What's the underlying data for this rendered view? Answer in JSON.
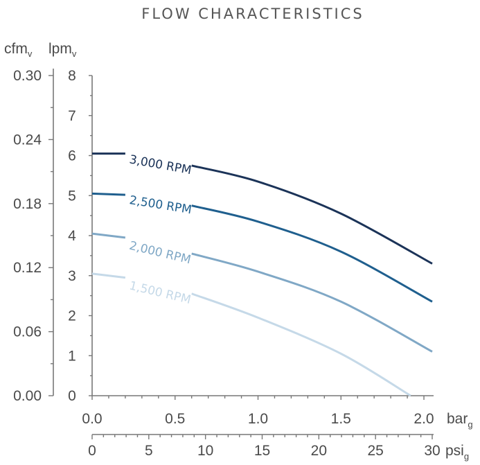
{
  "chart_data": {
    "type": "line",
    "title": "FLOW CHARACTERISTICS",
    "x_axes": {
      "bar": {
        "label_main": "bar",
        "label_sub": "g",
        "range": [
          0,
          2.05
        ],
        "ticks": [
          "0.0",
          "0.5",
          "1.0",
          "1.5",
          "2.0"
        ]
      },
      "psi": {
        "label_main": "psi",
        "label_sub": "g",
        "range": [
          0,
          30
        ],
        "ticks": [
          "0",
          "5",
          "10",
          "15",
          "20",
          "25",
          "30"
        ]
      }
    },
    "y_axes": {
      "cfm": {
        "label_main": "cfm",
        "label_sub": "v",
        "range": [
          0,
          0.3
        ],
        "ticks": [
          "0.00",
          "0.06",
          "0.12",
          "0.18",
          "0.24",
          "0.30"
        ]
      },
      "lpm": {
        "label_main": "lpm",
        "label_sub": "v",
        "range": [
          0,
          8
        ],
        "ticks": [
          "0",
          "1",
          "2",
          "3",
          "4",
          "5",
          "6",
          "7",
          "8"
        ]
      }
    },
    "series": [
      {
        "name": "3,000 RPM",
        "color": "#1b3358",
        "points": [
          [
            0,
            6.05
          ],
          [
            0.2,
            6.05
          ],
          [
            0.6,
            5.75
          ],
          [
            1.0,
            5.35
          ],
          [
            1.5,
            4.55
          ],
          [
            2.05,
            3.3
          ]
        ]
      },
      {
        "name": "2,500 RPM",
        "color": "#1f5f8e",
        "points": [
          [
            0,
            5.05
          ],
          [
            0.2,
            5.02
          ],
          [
            0.6,
            4.75
          ],
          [
            1.0,
            4.35
          ],
          [
            1.5,
            3.6
          ],
          [
            2.05,
            2.35
          ]
        ]
      },
      {
        "name": "2,000 RPM",
        "color": "#80a8c6",
        "points": [
          [
            0,
            4.05
          ],
          [
            0.2,
            3.95
          ],
          [
            0.6,
            3.55
          ],
          [
            1.0,
            3.1
          ],
          [
            1.5,
            2.35
          ],
          [
            2.05,
            1.1
          ]
        ]
      },
      {
        "name": "1,500 RPM",
        "color": "#c5d9e8",
        "points": [
          [
            0,
            3.05
          ],
          [
            0.2,
            2.95
          ],
          [
            0.6,
            2.55
          ],
          [
            1.0,
            1.95
          ],
          [
            1.5,
            1.05
          ],
          [
            1.92,
            0
          ]
        ]
      }
    ]
  }
}
